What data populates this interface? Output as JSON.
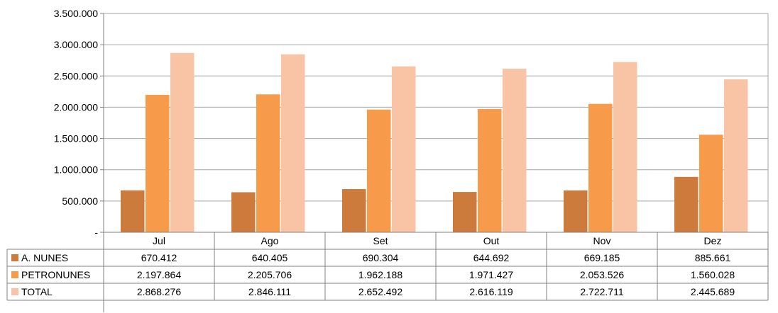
{
  "chart_data": {
    "type": "bar",
    "categories": [
      "Jul",
      "Ago",
      "Set",
      "Out",
      "Nov",
      "Dez"
    ],
    "series": [
      {
        "name": "A. NUNES",
        "color": "#CD7B3C",
        "values": [
          670412,
          640405,
          690304,
          644692,
          669185,
          885661
        ],
        "labels": [
          "670.412",
          "640.405",
          "690.304",
          "644.692",
          "669.185",
          "885.661"
        ]
      },
      {
        "name": "PETRONUNES",
        "color": "#F79A49",
        "values": [
          2197864,
          2205706,
          1962188,
          1971427,
          2053526,
          1560028
        ],
        "labels": [
          "2.197.864",
          "2.205.706",
          "1.962.188",
          "1.971.427",
          "2.053.526",
          "1.560.028"
        ]
      },
      {
        "name": "TOTAL",
        "color": "#F9C4A6",
        "values": [
          2868276,
          2846111,
          2652492,
          2616119,
          2722711,
          2445689
        ],
        "labels": [
          "2.868.276",
          "2.846.111",
          "2.652.492",
          "2.616.119",
          "2.722.711",
          "2.445.689"
        ]
      }
    ],
    "ylim": [
      0,
      3500000
    ],
    "yticks": [
      0,
      500000,
      1000000,
      1500000,
      2000000,
      2500000,
      3000000,
      3500000
    ],
    "ytick_labels": [
      "-",
      "500.000",
      "1.000.000",
      "1.500.000",
      "2.000.000",
      "2.500.000",
      "3.000.000",
      "3.500.000"
    ],
    "grid": true,
    "legend": "data-table",
    "title": "",
    "xlabel": "",
    "ylabel": ""
  }
}
